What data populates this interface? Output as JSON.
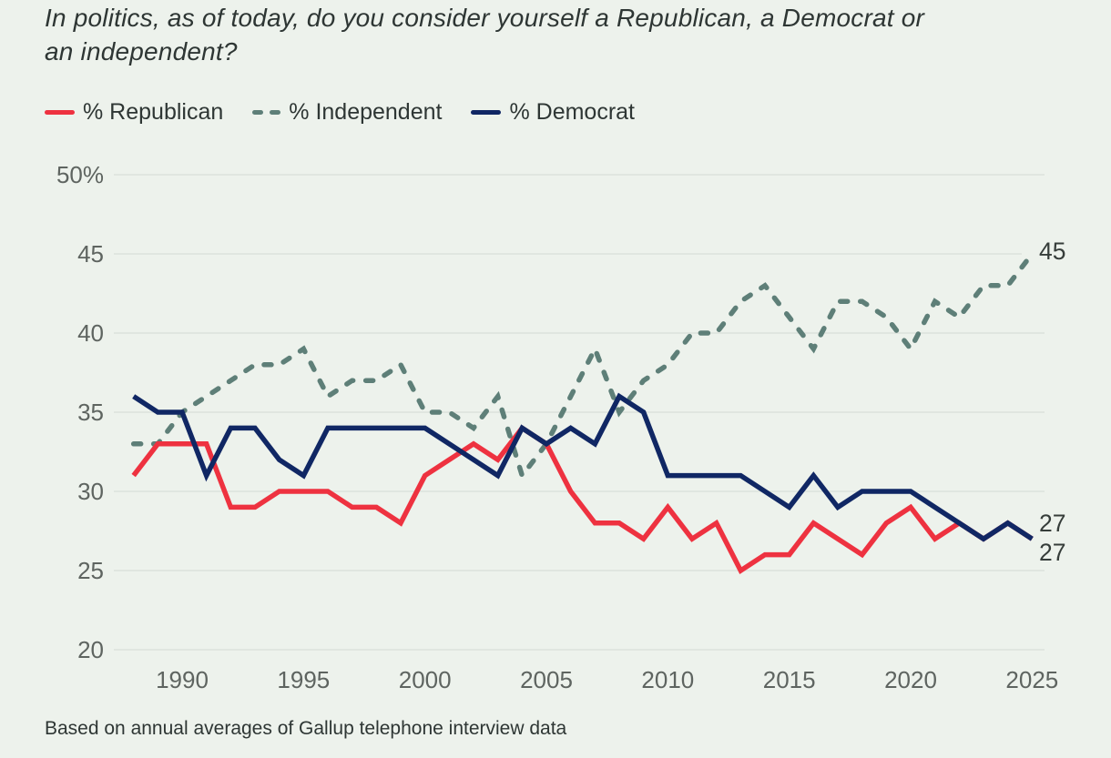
{
  "title": "In politics, as of today, do you consider yourself a Republican, a Democrat or\nan independent?",
  "footnote": "Based on annual averages of Gallup telephone interview data",
  "colors": {
    "background": "#edf2ec",
    "gridline": "#dce2db",
    "axis_text": "#5e6460",
    "end_label": "#363d3a",
    "title_text": "#2e3634"
  },
  "chart_data": {
    "type": "line",
    "title": "In politics, as of today, do you consider yourself a Republican, a Democrat or an independent?",
    "xlabel": "",
    "ylabel": "",
    "ylim": [
      20,
      50
    ],
    "grid": true,
    "legend_position": "top-left",
    "x_years": [
      1988,
      1989,
      1990,
      1991,
      1992,
      1993,
      1994,
      1995,
      1996,
      1997,
      1998,
      1999,
      2000,
      2001,
      2002,
      2003,
      2004,
      2005,
      2006,
      2007,
      2008,
      2009,
      2010,
      2011,
      2012,
      2013,
      2014,
      2015,
      2016,
      2017,
      2018,
      2019,
      2020,
      2021,
      2022,
      2023,
      2024,
      2025
    ],
    "xtick_years": [
      1990,
      1995,
      2000,
      2005,
      2010,
      2015,
      2020,
      2025
    ],
    "yticks": [
      {
        "value": 20,
        "label": "20",
        "short_grid": false
      },
      {
        "value": 25,
        "label": "25",
        "short_grid": false
      },
      {
        "value": 30,
        "label": "30",
        "short_grid": false
      },
      {
        "value": 35,
        "label": "35",
        "short_grid": false
      },
      {
        "value": 40,
        "label": "40",
        "short_grid": false
      },
      {
        "value": 45,
        "label": "45",
        "short_grid": true
      },
      {
        "value": 50,
        "label": "50%",
        "short_grid": false
      }
    ],
    "series": [
      {
        "id": "republican",
        "label": "% Republican",
        "style": "solid",
        "color": "#ee3240",
        "values": [
          31,
          33,
          33,
          33,
          29,
          29,
          30,
          30,
          30,
          29,
          29,
          28,
          31,
          32,
          33,
          32,
          34,
          33,
          30,
          28,
          28,
          27,
          29,
          27,
          28,
          25,
          26,
          26,
          28,
          27,
          26,
          28,
          29,
          27,
          28,
          27,
          28,
          27
        ],
        "end_label": "27",
        "end_label_dy": 15
      },
      {
        "id": "independent",
        "label": "% Independent",
        "style": "dashed",
        "color": "#5e7f78",
        "values": [
          33,
          33,
          35,
          36,
          37,
          38,
          38,
          39,
          36,
          37,
          37,
          38,
          35,
          35,
          34,
          36,
          31,
          33,
          36,
          39,
          35,
          37,
          38,
          40,
          40,
          42,
          43,
          41,
          39,
          42,
          42,
          41,
          39,
          42,
          41,
          43,
          43,
          45
        ],
        "end_label": "45",
        "end_label_dy": -3
      },
      {
        "id": "democrat",
        "label": "% Democrat",
        "style": "solid",
        "color": "#102764",
        "values": [
          36,
          35,
          35,
          31,
          34,
          34,
          32,
          31,
          34,
          34,
          34,
          34,
          34,
          33,
          32,
          31,
          34,
          33,
          34,
          33,
          36,
          35,
          31,
          31,
          31,
          31,
          30,
          29,
          31,
          29,
          30,
          30,
          30,
          29,
          28,
          27,
          28,
          27
        ],
        "end_label": "27",
        "end_label_dy": -17
      }
    ],
    "draw_order": [
      "independent",
      "republican",
      "democrat"
    ]
  }
}
